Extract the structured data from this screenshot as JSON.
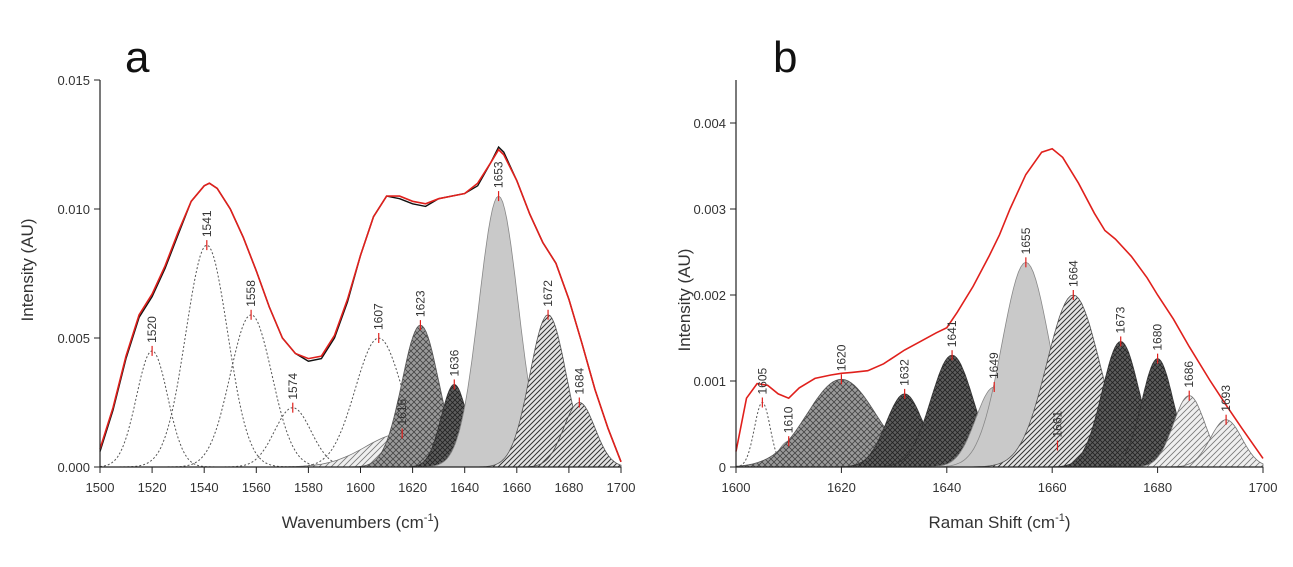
{
  "chart_data": [
    {
      "type": "line",
      "panel": "a",
      "xlabel": "Wavenumbers (cm",
      "xlabel_sup": "-1",
      "xlabel_close": ")",
      "ylabel": "Intensity (AU)",
      "xlim": [
        1500,
        1700
      ],
      "ylim": [
        0,
        0.015
      ],
      "x_ticks": [
        "1500",
        "1520",
        "1540",
        "1560",
        "1580",
        "1600",
        "1620",
        "1640",
        "1660",
        "1680",
        "1700"
      ],
      "y_ticks": [
        "0.000",
        "0.005",
        "0.010",
        "0.015"
      ],
      "series": [
        {
          "name": "measured",
          "color": "#111111",
          "x": [
            1500,
            1505,
            1510,
            1515,
            1520,
            1525,
            1530,
            1535,
            1540,
            1542,
            1545,
            1550,
            1555,
            1560,
            1565,
            1570,
            1575,
            1580,
            1585,
            1590,
            1595,
            1600,
            1605,
            1610,
            1615,
            1620,
            1625,
            1630,
            1635,
            1640,
            1645,
            1650,
            1653,
            1655,
            1660,
            1665,
            1670,
            1675,
            1680,
            1685,
            1690,
            1695,
            1700
          ],
          "y": [
            0.0006,
            0.0022,
            0.0042,
            0.0058,
            0.0066,
            0.0077,
            0.009,
            0.0103,
            0.0109,
            0.011,
            0.0108,
            0.01,
            0.0089,
            0.0076,
            0.0062,
            0.005,
            0.0044,
            0.0041,
            0.0042,
            0.005,
            0.0064,
            0.0082,
            0.0097,
            0.0105,
            0.0104,
            0.0102,
            0.0101,
            0.0104,
            0.0105,
            0.0106,
            0.0109,
            0.0118,
            0.0124,
            0.0122,
            0.0111,
            0.0098,
            0.0087,
            0.0079,
            0.0065,
            0.0048,
            0.003,
            0.0015,
            0.0002
          ]
        },
        {
          "name": "fit",
          "color": "#e0201c",
          "x": [
            1500,
            1505,
            1510,
            1515,
            1520,
            1525,
            1530,
            1535,
            1540,
            1542,
            1545,
            1550,
            1555,
            1560,
            1565,
            1570,
            1575,
            1580,
            1585,
            1590,
            1595,
            1600,
            1605,
            1610,
            1615,
            1620,
            1625,
            1630,
            1635,
            1640,
            1645,
            1650,
            1653,
            1655,
            1660,
            1665,
            1670,
            1675,
            1680,
            1685,
            1690,
            1695,
            1700
          ],
          "y": [
            0.0007,
            0.0023,
            0.0043,
            0.0059,
            0.0067,
            0.0078,
            0.0091,
            0.0103,
            0.0109,
            0.011,
            0.0108,
            0.01,
            0.0089,
            0.0076,
            0.0062,
            0.005,
            0.0044,
            0.0042,
            0.0043,
            0.0051,
            0.0065,
            0.0082,
            0.0097,
            0.0105,
            0.0105,
            0.0103,
            0.0102,
            0.0104,
            0.0105,
            0.0106,
            0.011,
            0.0118,
            0.0123,
            0.0121,
            0.0111,
            0.0098,
            0.0087,
            0.0079,
            0.0065,
            0.0048,
            0.003,
            0.0015,
            0.0002
          ]
        }
      ],
      "peaks": [
        {
          "label": "1520",
          "center": 1520,
          "height": 0.0045,
          "sigma": 6,
          "style": "dotted"
        },
        {
          "label": "1541",
          "center": 1541,
          "height": 0.0086,
          "sigma": 8,
          "style": "dotted"
        },
        {
          "label": "1558",
          "center": 1558,
          "height": 0.0059,
          "sigma": 8,
          "style": "dotted"
        },
        {
          "label": "1574",
          "center": 1574,
          "height": 0.0023,
          "sigma": 7,
          "style": "dotted"
        },
        {
          "label": "1607",
          "center": 1607,
          "height": 0.005,
          "sigma": 9,
          "style": "dotted"
        },
        {
          "label": "1616",
          "center": 1616,
          "height": 0.0013,
          "sigma": 14,
          "style": "hatch-light"
        },
        {
          "label": "1623",
          "center": 1623,
          "height": 0.0055,
          "sigma": 7,
          "style": "crosshatch"
        },
        {
          "label": "1636",
          "center": 1636,
          "height": 0.0032,
          "sigma": 5,
          "style": "crosshatch-dark"
        },
        {
          "label": "1653",
          "center": 1653,
          "height": 0.0105,
          "sigma": 7.5,
          "style": "solid-gray"
        },
        {
          "label": "1672",
          "center": 1672,
          "height": 0.0059,
          "sigma": 7,
          "style": "hatch"
        },
        {
          "label": "1684",
          "center": 1684,
          "height": 0.0025,
          "sigma": 6,
          "style": "hatch"
        }
      ]
    },
    {
      "type": "line",
      "panel": "b",
      "xlabel": "Raman Shift (cm",
      "xlabel_sup": "-1",
      "xlabel_close": ")",
      "ylabel": "Intensity (AU)",
      "xlim": [
        1600,
        1700
      ],
      "ylim": [
        0,
        0.0045
      ],
      "x_ticks": [
        "1600",
        "1620",
        "1640",
        "1660",
        "1680",
        "1700"
      ],
      "y_ticks": [
        "0",
        "0.001",
        "0.002",
        "0.003",
        "0.004"
      ],
      "series": [
        {
          "name": "fit",
          "color": "#e0201c",
          "x": [
            1600,
            1602,
            1604,
            1606,
            1608,
            1610,
            1612,
            1615,
            1618,
            1620,
            1622,
            1625,
            1628,
            1630,
            1632,
            1635,
            1638,
            1640,
            1642,
            1645,
            1648,
            1650,
            1652,
            1655,
            1658,
            1660,
            1662,
            1665,
            1668,
            1670,
            1672,
            1675,
            1678,
            1680,
            1683,
            1686,
            1690,
            1693,
            1696,
            1700
          ],
          "y": [
            0.00018,
            0.0008,
            0.00097,
            0.00095,
            0.00085,
            0.0008,
            0.00092,
            0.00103,
            0.00107,
            0.00109,
            0.0011,
            0.00112,
            0.0012,
            0.00128,
            0.00136,
            0.00146,
            0.00156,
            0.00162,
            0.0018,
            0.0021,
            0.00245,
            0.0027,
            0.003,
            0.0034,
            0.00366,
            0.0037,
            0.0036,
            0.0033,
            0.00295,
            0.00275,
            0.00265,
            0.00245,
            0.0022,
            0.002,
            0.00172,
            0.0014,
            0.001,
            0.00072,
            0.00045,
            0.0001
          ]
        }
      ],
      "peaks": [
        {
          "label": "1605",
          "center": 1605,
          "height": 0.00075,
          "sigma": 1.5,
          "style": "dotted"
        },
        {
          "label": "1610",
          "center": 1610,
          "height": 0.0003,
          "sigma": 2.0,
          "style": "hatch-light"
        },
        {
          "label": "1620",
          "center": 1620,
          "height": 0.00102,
          "sigma": 6.5,
          "style": "crosshatch"
        },
        {
          "label": "1632",
          "center": 1632,
          "height": 0.00085,
          "sigma": 3.5,
          "style": "crosshatch-dark"
        },
        {
          "label": "1641",
          "center": 1641,
          "height": 0.0013,
          "sigma": 4.0,
          "style": "crosshatch-dark"
        },
        {
          "label": "1649",
          "center": 1649,
          "height": 0.00093,
          "sigma": 3.5,
          "style": "solid-gray"
        },
        {
          "label": "1655",
          "center": 1655,
          "height": 0.00238,
          "sigma": 4.5,
          "style": "solid-gray"
        },
        {
          "label": "1661",
          "center": 1661,
          "height": 0.00025,
          "sigma": 5.0,
          "style": "hatch-light"
        },
        {
          "label": "1664",
          "center": 1664,
          "height": 0.002,
          "sigma": 5.0,
          "style": "hatch"
        },
        {
          "label": "1673",
          "center": 1673,
          "height": 0.00146,
          "sigma": 3.5,
          "style": "crosshatch-dark"
        },
        {
          "label": "1680",
          "center": 1680,
          "height": 0.00126,
          "sigma": 3.0,
          "style": "crosshatch-dark"
        },
        {
          "label": "1686",
          "center": 1686,
          "height": 0.00083,
          "sigma": 3.0,
          "style": "hatch-light"
        },
        {
          "label": "1693",
          "center": 1693,
          "height": 0.00055,
          "sigma": 3.0,
          "style": "hatch-light"
        }
      ]
    }
  ]
}
